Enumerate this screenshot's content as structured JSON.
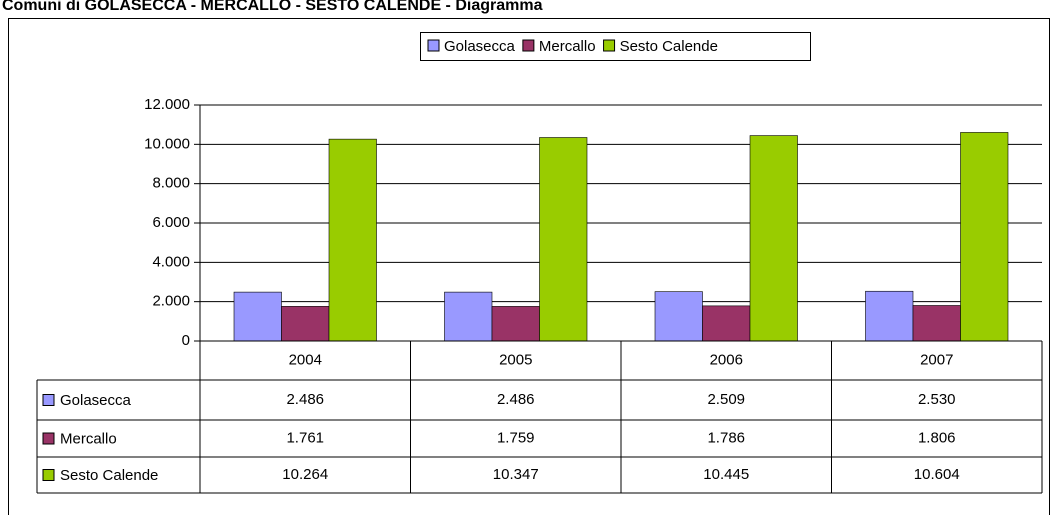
{
  "chart_data": {
    "type": "bar",
    "title": "Comuni di GOLASECCA - MERCALLO - SESTO CALENDE - Diagramma",
    "categories": [
      "2004",
      "2005",
      "2006",
      "2007"
    ],
    "series": [
      {
        "name": "Golasecca",
        "color": "#9999ff",
        "values": [
          2486,
          2486,
          2509,
          2530
        ],
        "value_labels": [
          "2.486",
          "2.486",
          "2.509",
          "2.530"
        ]
      },
      {
        "name": "Mercallo",
        "color": "#993366",
        "values": [
          1761,
          1759,
          1786,
          1806
        ],
        "value_labels": [
          "1.761",
          "1.759",
          "1.786",
          "1.806"
        ]
      },
      {
        "name": "Sesto Calende",
        "color": "#99cc00",
        "values": [
          10264,
          10347,
          10445,
          10604
        ],
        "value_labels": [
          "10.264",
          "10.347",
          "10.445",
          "10.604"
        ]
      }
    ],
    "ylim": [
      0,
      12000
    ],
    "yticks": [
      0,
      {
        "value": 2000,
        "label": "2.000"
      },
      {
        "value": 4000,
        "label": "4.000"
      },
      {
        "value": 6000,
        "label": "6.000"
      },
      {
        "value": 8000,
        "label": "8.000"
      },
      {
        "value": 10000,
        "label": "10.000"
      },
      {
        "value": 12000,
        "label": "12.000"
      }
    ],
    "grid": true,
    "legend": "top"
  }
}
